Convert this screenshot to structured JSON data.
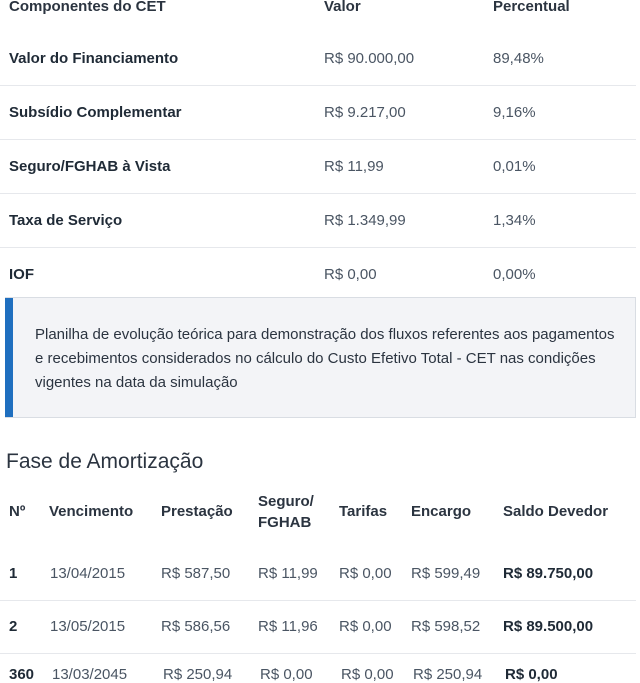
{
  "cet": {
    "headers": {
      "component": "Componentes do CET",
      "value": "Valor",
      "percent": "Percentual"
    },
    "rows": [
      {
        "component": "Valor do Financiamento",
        "value": "R$ 90.000,00",
        "percent": "89,48%"
      },
      {
        "component": "Subsídio Complementar",
        "value": "R$ 9.217,00",
        "percent": "9,16%"
      },
      {
        "component": "Seguro/FGHAB à Vista",
        "value": "R$ 11,99",
        "percent": "0,01%"
      },
      {
        "component": "Taxa de Serviço",
        "value": "R$ 1.349,99",
        "percent": "1,34%"
      },
      {
        "component": "IOF",
        "value": "R$ 0,00",
        "percent": "0,00%"
      }
    ]
  },
  "info": {
    "text": "Planilha de evolução teórica para demonstração dos fluxos referentes aos pagamentos e recebimentos considerados no cálculo do Custo Efetivo Total - CET nas condições vigentes na data da simulação",
    "accent_color": "#1f6fbf"
  },
  "amortization": {
    "title": "Fase de Amortização",
    "headers": {
      "number": "Nº",
      "due_date": "Vencimento",
      "payment": "Prestação",
      "insurance_line1": "Seguro/",
      "insurance_line2": "FGHAB",
      "fees": "Tarifas",
      "charge": "Encargo",
      "balance": "Saldo Devedor"
    },
    "rows": [
      {
        "number": "1",
        "due_date": "13/04/2015",
        "payment": "R$ 587,50",
        "insurance": "R$ 11,99",
        "fees": "R$ 0,00",
        "charge": "R$ 599,49",
        "balance": "R$ 89.750,00"
      },
      {
        "number": "2",
        "due_date": "13/05/2015",
        "payment": "R$ 586,56",
        "insurance": "R$ 11,96",
        "fees": "R$ 0,00",
        "charge": "R$ 598,52",
        "balance": "R$ 89.500,00"
      },
      {
        "number": "360",
        "due_date": "13/03/2045",
        "payment": "R$ 250,94",
        "insurance": "R$ 0,00",
        "fees": "R$ 0,00",
        "charge": "R$ 250,94",
        "balance": "R$ 0,00"
      }
    ]
  }
}
